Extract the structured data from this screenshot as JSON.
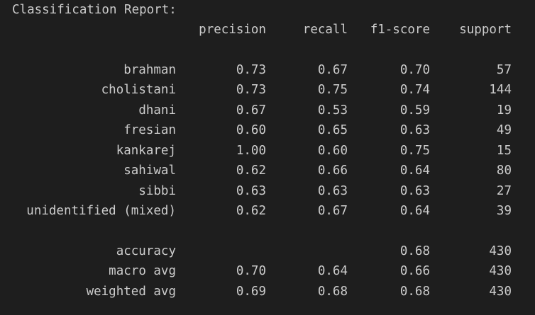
{
  "report": {
    "title": "Classification Report:",
    "columns": {
      "precision": "precision",
      "recall": "recall",
      "f1": "f1-score",
      "support": "support"
    },
    "rows": [
      {
        "label": "brahman",
        "precision": "0.73",
        "recall": "0.67",
        "f1": "0.70",
        "support": "57"
      },
      {
        "label": "cholistani",
        "precision": "0.73",
        "recall": "0.75",
        "f1": "0.74",
        "support": "144"
      },
      {
        "label": "dhani",
        "precision": "0.67",
        "recall": "0.53",
        "f1": "0.59",
        "support": "19"
      },
      {
        "label": "fresian",
        "precision": "0.60",
        "recall": "0.65",
        "f1": "0.63",
        "support": "49"
      },
      {
        "label": "kankarej",
        "precision": "1.00",
        "recall": "0.60",
        "f1": "0.75",
        "support": "15"
      },
      {
        "label": "sahiwal",
        "precision": "0.62",
        "recall": "0.66",
        "f1": "0.64",
        "support": "80"
      },
      {
        "label": "sibbi",
        "precision": "0.63",
        "recall": "0.63",
        "f1": "0.63",
        "support": "27"
      },
      {
        "label": "unidentified (mixed)",
        "precision": "0.62",
        "recall": "0.67",
        "f1": "0.64",
        "support": "39"
      }
    ],
    "summary": [
      {
        "label": "accuracy",
        "precision": "",
        "recall": "",
        "f1": "0.68",
        "support": "430"
      },
      {
        "label": "macro avg",
        "precision": "0.70",
        "recall": "0.64",
        "f1": "0.66",
        "support": "430"
      },
      {
        "label": "weighted avg",
        "precision": "0.69",
        "recall": "0.68",
        "f1": "0.68",
        "support": "430"
      }
    ]
  },
  "colors": {
    "background": "#1e1e1e",
    "text": "#cccccc"
  }
}
